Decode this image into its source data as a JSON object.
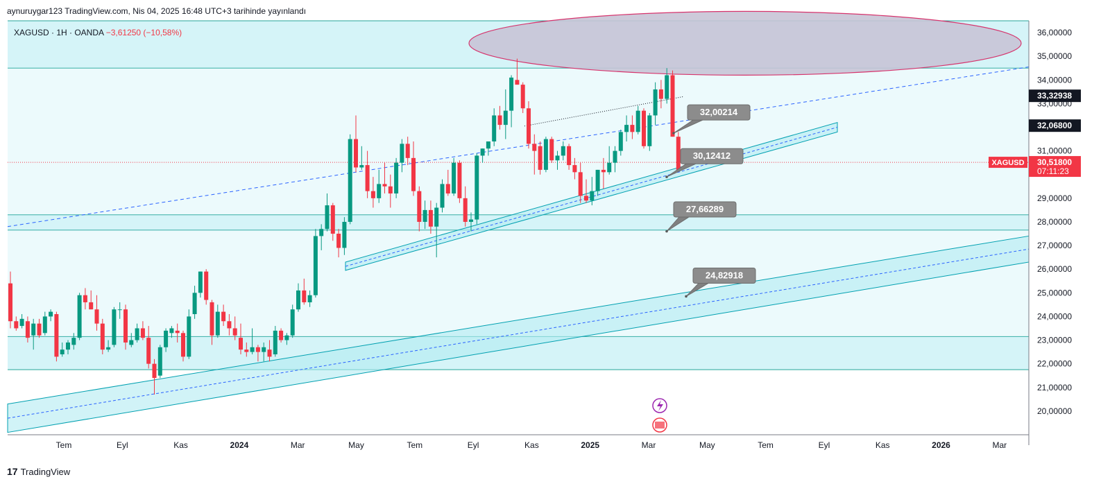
{
  "header": {
    "published": "aynuruygar123 TradingView.com, Nis 04, 2025 16:48 UTC+3 tarihinde yayınlandı"
  },
  "legend": {
    "symbol": "XAGUSD · 1H · OANDA",
    "change": "−3,61250 (−10,58%)"
  },
  "footer": {
    "brand_logo": "17",
    "brand": "TradingView"
  },
  "colors": {
    "up": "#089981",
    "down": "#f23645",
    "zone_fill": "#b2ebf2",
    "zone_line": "#26a69a",
    "trend": "#00a0b0",
    "dash": "#2962ff",
    "ellipse_fill": "#c8c4d6",
    "ellipse_line": "#d6336c"
  },
  "chart_data": {
    "type": "candlestick",
    "symbol": "XAGUSD",
    "interval": "1H",
    "exchange": "OANDA",
    "ylim": [
      19.0,
      36.5
    ],
    "y_ticks": [
      "36,00000",
      "35,00000",
      "34,00000",
      "33,00000",
      "31,00000",
      "29,00000",
      "28,00000",
      "27,00000",
      "26,00000",
      "25,00000",
      "24,00000",
      "23,00000",
      "22,00000",
      "21,00000",
      "20,00000"
    ],
    "x_ticks": [
      "Tem",
      "Eyl",
      "Kas",
      "2024",
      "Mar",
      "May",
      "Tem",
      "Eyl",
      "Kas",
      "2025",
      "Mar",
      "May",
      "Tem",
      "Eyl",
      "Kas",
      "2026",
      "Mar"
    ],
    "price_labels": [
      {
        "label": "",
        "value": "33,32938",
        "style": "dark"
      },
      {
        "label": "",
        "value": "32,06800",
        "style": "dark"
      },
      {
        "label": "XAGUSD",
        "value": "30,51800",
        "sub": "07:11:23",
        "style": "red"
      }
    ],
    "annotations": [
      "32,00214",
      "30,12412",
      "27,66289",
      "24,82918"
    ],
    "horizontal_zones": [
      {
        "top": 36.5,
        "bottom": 34.5
      },
      {
        "top": 28.3,
        "bottom": 27.65
      },
      {
        "top": 23.15,
        "bottom": 21.75
      }
    ],
    "candles": [
      [
        25.4,
        25.9,
        23.5,
        23.8
      ],
      [
        23.8,
        24.0,
        23.4,
        23.5
      ],
      [
        23.6,
        24.1,
        23.5,
        23.9
      ],
      [
        23.8,
        24.0,
        22.9,
        23.1
      ],
      [
        23.2,
        23.9,
        22.6,
        23.7
      ],
      [
        23.7,
        23.9,
        23.1,
        23.2
      ],
      [
        23.3,
        24.2,
        23.2,
        24.0
      ],
      [
        24.0,
        24.3,
        23.8,
        24.2
      ],
      [
        24.1,
        24.2,
        22.1,
        22.3
      ],
      [
        22.4,
        22.9,
        22.3,
        22.6
      ],
      [
        22.6,
        23.0,
        22.4,
        22.9
      ],
      [
        22.8,
        23.3,
        22.6,
        23.1
      ],
      [
        23.1,
        25.0,
        23.0,
        24.9
      ],
      [
        24.9,
        25.2,
        24.3,
        24.6
      ],
      [
        24.6,
        25.1,
        24.3,
        24.3
      ],
      [
        24.3,
        24.9,
        23.4,
        23.7
      ],
      [
        23.7,
        23.9,
        22.4,
        22.6
      ],
      [
        22.6,
        23.0,
        22.5,
        22.7
      ],
      [
        22.8,
        24.4,
        22.7,
        24.3
      ],
      [
        24.3,
        24.6,
        23.9,
        24.3
      ],
      [
        24.3,
        24.5,
        22.6,
        22.9
      ],
      [
        22.8,
        23.3,
        22.7,
        23.0
      ],
      [
        23.0,
        23.7,
        22.9,
        23.5
      ],
      [
        23.5,
        23.8,
        23.0,
        23.1
      ],
      [
        23.1,
        23.6,
        21.8,
        22.0
      ],
      [
        22.0,
        22.2,
        20.7,
        21.4
      ],
      [
        21.5,
        22.8,
        21.4,
        22.7
      ],
      [
        22.7,
        23.5,
        22.5,
        23.4
      ],
      [
        23.3,
        23.6,
        23.1,
        23.5
      ],
      [
        23.4,
        23.7,
        22.9,
        23.3
      ],
      [
        23.3,
        23.4,
        22.1,
        22.3
      ],
      [
        22.3,
        24.3,
        22.2,
        24.0
      ],
      [
        24.1,
        25.3,
        23.9,
        25.0
      ],
      [
        25.0,
        25.9,
        24.8,
        25.9
      ],
      [
        25.9,
        26.0,
        24.5,
        24.7
      ],
      [
        24.6,
        24.7,
        22.8,
        23.2
      ],
      [
        23.2,
        24.5,
        23.1,
        24.2
      ],
      [
        24.2,
        24.5,
        23.6,
        23.8
      ],
      [
        23.8,
        24.1,
        23.2,
        23.5
      ],
      [
        23.5,
        24.0,
        23.0,
        23.2
      ],
      [
        23.1,
        23.7,
        22.4,
        22.6
      ],
      [
        22.6,
        22.9,
        22.3,
        22.5
      ],
      [
        22.5,
        23.5,
        22.4,
        22.7
      ],
      [
        22.7,
        22.8,
        22.1,
        22.5
      ],
      [
        22.5,
        22.9,
        22.1,
        22.7
      ],
      [
        22.6,
        23.0,
        22.1,
        22.3
      ],
      [
        22.4,
        23.6,
        22.3,
        23.4
      ],
      [
        23.4,
        23.5,
        22.9,
        23.0
      ],
      [
        23.0,
        23.3,
        22.8,
        23.2
      ],
      [
        23.2,
        24.5,
        23.1,
        24.3
      ],
      [
        24.3,
        25.4,
        24.2,
        25.1
      ],
      [
        25.1,
        25.6,
        24.5,
        24.6
      ],
      [
        24.6,
        25.1,
        24.4,
        24.9
      ],
      [
        24.9,
        27.7,
        24.8,
        27.4
      ],
      [
        27.4,
        27.9,
        26.8,
        27.7
      ],
      [
        27.7,
        29.2,
        27.6,
        28.7
      ],
      [
        28.7,
        28.8,
        27.2,
        27.5
      ],
      [
        27.5,
        27.7,
        26.5,
        26.9
      ],
      [
        26.9,
        28.2,
        26.6,
        28.0
      ],
      [
        28.0,
        31.7,
        27.9,
        31.5
      ],
      [
        31.5,
        32.5,
        30.1,
        30.3
      ],
      [
        30.3,
        31.2,
        30.2,
        30.4
      ],
      [
        30.4,
        31.0,
        29.0,
        29.3
      ],
      [
        29.3,
        29.9,
        28.6,
        29.0
      ],
      [
        29.0,
        30.2,
        28.8,
        29.6
      ],
      [
        29.6,
        30.5,
        29.2,
        29.5
      ],
      [
        29.5,
        30.0,
        28.6,
        29.2
      ],
      [
        29.2,
        30.7,
        29.0,
        30.5
      ],
      [
        30.5,
        31.5,
        30.1,
        31.3
      ],
      [
        31.3,
        31.6,
        30.4,
        30.7
      ],
      [
        30.7,
        31.4,
        29.1,
        29.3
      ],
      [
        29.3,
        29.5,
        27.6,
        28.0
      ],
      [
        28.0,
        28.9,
        27.7,
        28.5
      ],
      [
        28.5,
        28.9,
        27.5,
        27.8
      ],
      [
        27.8,
        28.8,
        26.5,
        28.6
      ],
      [
        28.6,
        29.8,
        28.4,
        29.6
      ],
      [
        29.6,
        30.2,
        29.1,
        29.2
      ],
      [
        29.2,
        30.7,
        29.1,
        30.5
      ],
      [
        30.5,
        30.6,
        28.8,
        29.0
      ],
      [
        29.0,
        29.5,
        27.8,
        28.0
      ],
      [
        28.0,
        28.4,
        27.6,
        28.1
      ],
      [
        28.1,
        30.9,
        27.9,
        30.8
      ],
      [
        30.8,
        31.1,
        30.5,
        31.1
      ],
      [
        31.1,
        31.4,
        30.8,
        31.4
      ],
      [
        31.4,
        32.8,
        31.2,
        32.5
      ],
      [
        32.5,
        32.9,
        31.9,
        32.1
      ],
      [
        32.1,
        33.6,
        31.5,
        32.7
      ],
      [
        32.7,
        34.2,
        32.0,
        34.1
      ],
      [
        34.0,
        34.9,
        33.8,
        33.8
      ],
      [
        33.8,
        33.9,
        32.6,
        32.8
      ],
      [
        32.8,
        33.1,
        31.1,
        31.3
      ],
      [
        31.3,
        31.7,
        30.0,
        31.0
      ],
      [
        31.2,
        31.4,
        30.0,
        30.2
      ],
      [
        30.2,
        31.6,
        30.1,
        31.5
      ],
      [
        31.5,
        31.6,
        30.5,
        30.6
      ],
      [
        30.6,
        31.0,
        30.2,
        30.8
      ],
      [
        30.8,
        31.4,
        30.6,
        31.2
      ],
      [
        31.2,
        31.3,
        30.2,
        30.4
      ],
      [
        30.4,
        30.7,
        29.8,
        30.1
      ],
      [
        30.1,
        30.5,
        28.8,
        29.1
      ],
      [
        29.1,
        29.8,
        28.8,
        28.9
      ],
      [
        28.9,
        29.9,
        28.7,
        29.3
      ],
      [
        29.3,
        30.2,
        29.1,
        30.2
      ],
      [
        30.2,
        30.7,
        29.4,
        30.1
      ],
      [
        30.1,
        31.2,
        30.0,
        30.5
      ],
      [
        30.5,
        31.2,
        30.1,
        31.0
      ],
      [
        31.0,
        31.9,
        30.8,
        31.8
      ],
      [
        31.8,
        32.5,
        31.4,
        32.1
      ],
      [
        32.1,
        32.5,
        31.5,
        31.8
      ],
      [
        31.8,
        32.9,
        31.7,
        32.7
      ],
      [
        32.7,
        32.8,
        31.1,
        31.2
      ],
      [
        31.2,
        32.6,
        31.0,
        32.5
      ],
      [
        32.5,
        33.9,
        32.1,
        33.6
      ],
      [
        33.6,
        34.0,
        32.8,
        33.2
      ],
      [
        33.2,
        34.5,
        33.0,
        34.2
      ],
      [
        34.2,
        34.4,
        31.6,
        31.6
      ],
      [
        31.6,
        31.8,
        30.2,
        30.2
      ]
    ]
  }
}
